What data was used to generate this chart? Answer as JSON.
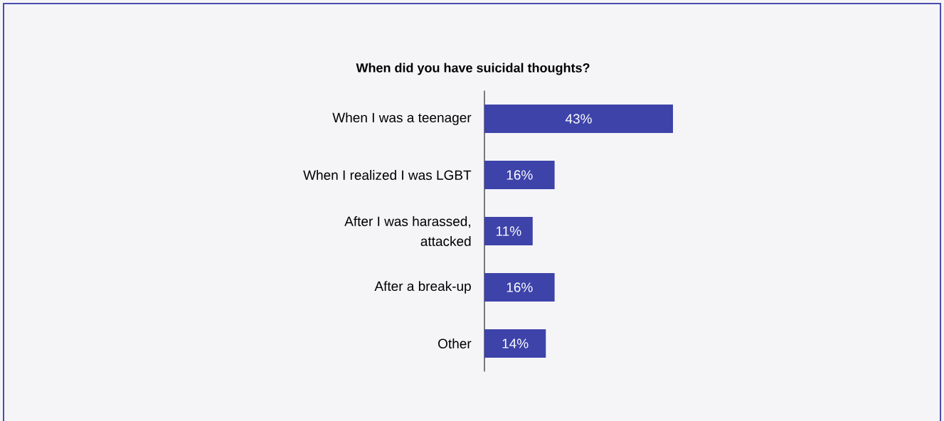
{
  "chart_data": {
    "type": "bar",
    "orientation": "horizontal",
    "title": "When did you have suicidal thoughts?",
    "categories": [
      "When I was a teenager",
      "When I realized I was LGBT",
      "After I was harassed, attacked",
      "After a break-up",
      "Other"
    ],
    "values": [
      43,
      16,
      11,
      16,
      14
    ],
    "value_labels": [
      "43%",
      "16%",
      "11%",
      "16%",
      "14%"
    ],
    "color": "#3d43a9"
  }
}
